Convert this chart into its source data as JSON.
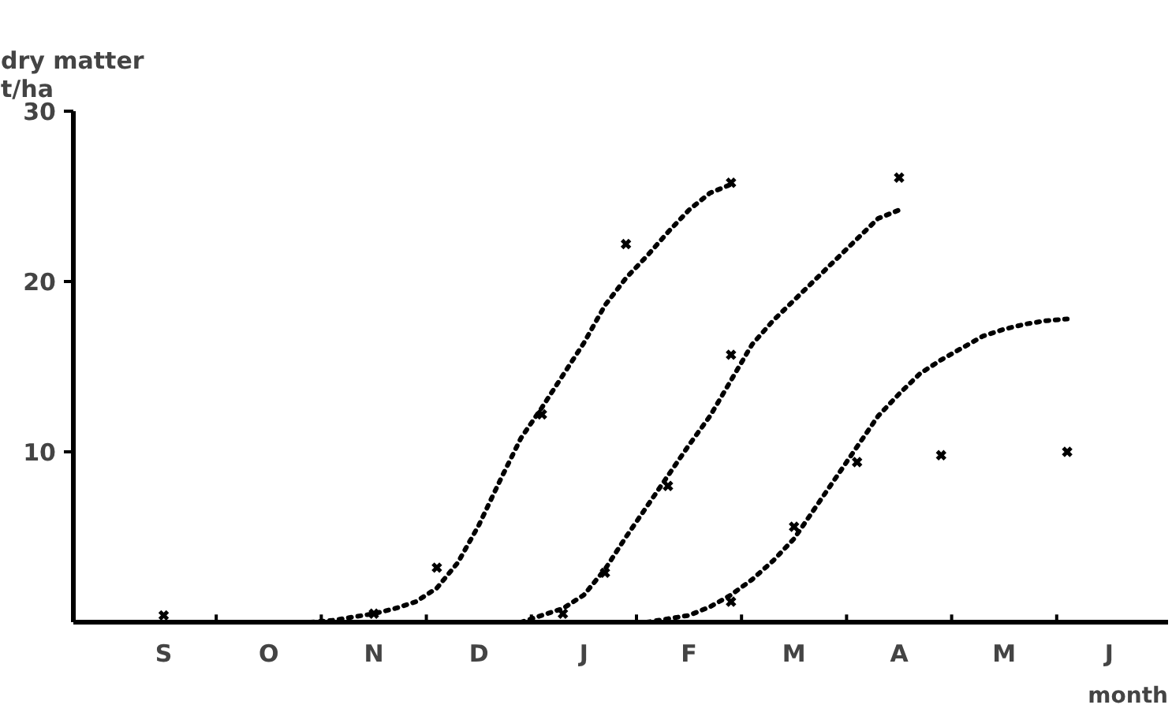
{
  "chart_data": {
    "type": "line",
    "ylabel": "dry matter\nt/ha",
    "xlabel": "month",
    "categories": [
      null,
      null,
      "S",
      null,
      null,
      null,
      null,
      "O",
      null,
      null,
      null,
      null,
      "N",
      null,
      null,
      null,
      null,
      "D",
      null,
      null,
      null,
      null,
      "J",
      null,
      null,
      null,
      null,
      "F",
      null,
      null,
      null,
      null,
      "M",
      null,
      null,
      null,
      null,
      "A",
      null,
      null,
      null,
      null,
      "M",
      null,
      null,
      null,
      null,
      "J",
      null,
      null
    ],
    "ylim": [
      0,
      30
    ],
    "yticks": [
      10,
      20,
      30
    ],
    "grid": false,
    "series": [
      {
        "line_style": "dotted",
        "marker": "none",
        "color": "#000000",
        "values": [
          null,
          null,
          null,
          null,
          null,
          null,
          null,
          null,
          null,
          0,
          0.1,
          0.3,
          0.5,
          0.8,
          1.2,
          2.0,
          3.5,
          5.7,
          8.3,
          10.8,
          12.6,
          14.5,
          16.4,
          18.6,
          20.2,
          21.5,
          22.9,
          24.2,
          25.2,
          25.7,
          null,
          null,
          null,
          null,
          null,
          null,
          null,
          null,
          null,
          null,
          null,
          null,
          null,
          null,
          null,
          null,
          null,
          null,
          null,
          null
        ]
      },
      {
        "line_style": "dotted",
        "marker": "none",
        "color": "#000000",
        "values": [
          null,
          null,
          null,
          null,
          null,
          null,
          null,
          null,
          null,
          null,
          null,
          null,
          null,
          null,
          null,
          null,
          null,
          null,
          null,
          0,
          0.4,
          0.8,
          1.6,
          3.1,
          5.0,
          6.8,
          8.6,
          10.4,
          12.1,
          14.2,
          16.3,
          17.7,
          18.9,
          20.1,
          21.3,
          22.5,
          23.7,
          24.2,
          null,
          null,
          null,
          null,
          null,
          null,
          null,
          null,
          null,
          null,
          null,
          null
        ]
      },
      {
        "line_style": "dotted",
        "marker": "none",
        "color": "#000000",
        "values": [
          null,
          null,
          null,
          null,
          null,
          null,
          null,
          null,
          null,
          null,
          null,
          null,
          null,
          null,
          null,
          null,
          null,
          null,
          null,
          null,
          null,
          null,
          null,
          null,
          null,
          0,
          0.2,
          0.4,
          0.9,
          1.6,
          2.5,
          3.6,
          4.9,
          6.7,
          8.5,
          10.3,
          12.1,
          13.4,
          14.6,
          15.4,
          16.1,
          16.8,
          17.2,
          17.5,
          17.7,
          17.8,
          null,
          null,
          null,
          null
        ]
      },
      {
        "type": "scatter",
        "marker": "cross",
        "color": "#000000",
        "values": [
          null,
          null,
          0.4,
          null,
          null,
          null,
          null,
          null,
          null,
          null,
          null,
          null,
          0.5,
          null,
          null,
          3.2,
          null,
          null,
          null,
          null,
          12.2,
          null,
          null,
          null,
          22.2,
          null,
          null,
          null,
          null,
          25.8,
          null,
          null,
          null,
          null,
          null,
          null,
          null,
          null,
          null,
          null,
          null,
          null,
          null,
          null,
          null,
          null,
          null,
          null,
          null,
          null
        ]
      },
      {
        "type": "scatter",
        "marker": "cross",
        "color": "#000000",
        "values": [
          null,
          null,
          null,
          null,
          null,
          null,
          null,
          null,
          null,
          null,
          null,
          null,
          null,
          null,
          null,
          null,
          null,
          null,
          null,
          null,
          null,
          0.5,
          null,
          2.9,
          null,
          null,
          8.0,
          null,
          null,
          15.7,
          null,
          null,
          null,
          null,
          null,
          null,
          null,
          26.1,
          null,
          null,
          null,
          null,
          null,
          null,
          null,
          null,
          null,
          null,
          null,
          null
        ]
      },
      {
        "type": "scatter",
        "marker": "cross",
        "color": "#000000",
        "values": [
          null,
          null,
          null,
          null,
          null,
          null,
          null,
          null,
          null,
          null,
          null,
          null,
          null,
          null,
          null,
          null,
          null,
          null,
          null,
          null,
          null,
          null,
          null,
          null,
          null,
          null,
          null,
          null,
          null,
          1.2,
          null,
          null,
          5.6,
          null,
          null,
          9.4,
          null,
          null,
          null,
          9.8,
          null,
          null,
          null,
          null,
          null,
          10.0,
          null,
          null,
          null,
          null
        ]
      }
    ]
  }
}
